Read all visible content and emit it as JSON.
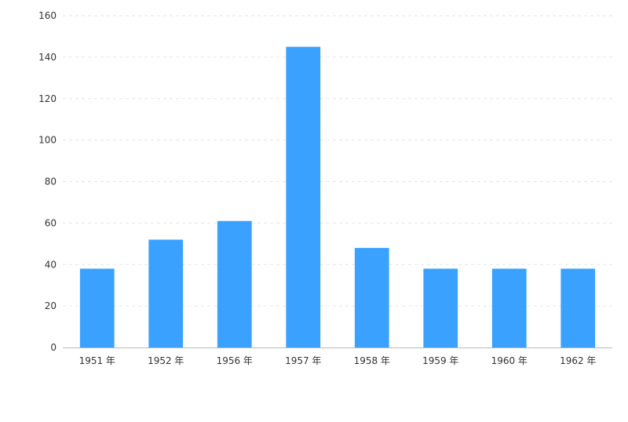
{
  "chart_data": {
    "type": "bar",
    "categories": [
      "1951 年",
      "1952 年",
      "1956 年",
      "1957 年",
      "1958 年",
      "1959 年",
      "1960 年",
      "1962 年"
    ],
    "values": [
      38,
      52,
      61,
      145,
      48,
      38,
      38,
      38
    ],
    "ylim": [
      0,
      160
    ],
    "yticks": [
      0,
      20,
      40,
      60,
      80,
      100,
      120,
      140,
      160
    ],
    "grid": true,
    "bar_color": "#3ba1ff",
    "title": "",
    "xlabel": "",
    "ylabel": ""
  }
}
